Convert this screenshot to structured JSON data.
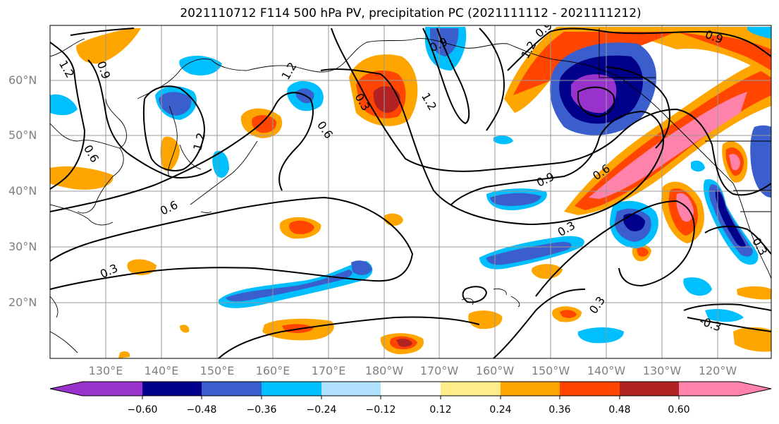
{
  "title": "2021110712 F114 500 hPa PV, precipitation PC (2021111112 - 2021111212)",
  "lat_labels": [
    "60°N",
    "50°N",
    "40°N",
    "30°N",
    "20°N"
  ],
  "lon_labels": [
    "130°E",
    "140°E",
    "150°E",
    "160°E",
    "170°E",
    "180°W",
    "170°W",
    "160°W",
    "150°W",
    "140°W",
    "130°W",
    "120°W"
  ],
  "colorbar": {
    "ticks": [
      "−0.60",
      "−0.48",
      "−0.36",
      "−0.24",
      "−0.12",
      "0.12",
      "0.24",
      "0.36",
      "0.48",
      "0.60"
    ],
    "colors": [
      "#9932CC",
      "#00008B",
      "#3A5FCD",
      "#00BFFF",
      "#B0E2FF",
      "#FFFFFF",
      "#FFEC8B",
      "#FFA500",
      "#FF4500",
      "#B22222",
      "#FF82AB"
    ]
  },
  "contour_labels": [
    "1.2",
    "0.9",
    "1.2",
    "0.6",
    "1.2",
    "0.6",
    "0.3",
    "0.6",
    "1.2",
    "0.9",
    "1.2",
    "0.9",
    "0.3",
    "0.9",
    "0.6",
    "0.3",
    "0.3",
    "0.3",
    "-0.3",
    "0.3"
  ]
}
